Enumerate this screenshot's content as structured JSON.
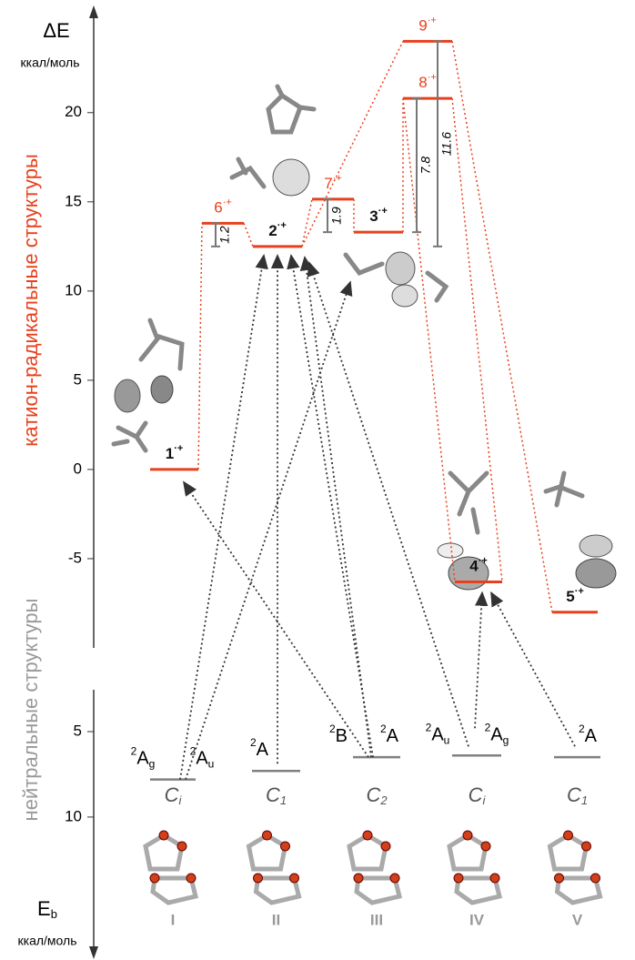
{
  "upper_axis": {
    "title": "ΔE",
    "unit": "ккал/моль",
    "label": "катион-радикальные структуры",
    "ylim": [
      -10,
      25.7
    ],
    "yticks": [
      -5,
      0,
      5,
      10,
      15,
      20
    ]
  },
  "lower_axis": {
    "title": "E",
    "title_sub": "b",
    "unit": "ккал/моль",
    "label": "нейтральные структуры",
    "ylim": [
      2.55,
      18.1
    ],
    "yticks": [
      5,
      10
    ]
  },
  "cation_levels": [
    {
      "label": "1",
      "charge": "·+",
      "value": 0
    },
    {
      "label": "2",
      "charge": "·+",
      "value": 12.5
    },
    {
      "label": "3",
      "charge": "·+",
      "value": 13.3
    },
    {
      "label": "4",
      "charge": "·+",
      "value": -6.3
    },
    {
      "label": "5",
      "charge": "·+",
      "value": -8.0
    },
    {
      "label": "6",
      "charge": "·+",
      "value": 13.8
    },
    {
      "label": "7",
      "charge": "·+",
      "value": 15.15
    },
    {
      "label": "8",
      "charge": "·+",
      "value": 20.8
    },
    {
      "label": "9",
      "charge": "·+",
      "value": 24.0
    }
  ],
  "gaps": [
    {
      "value": 1.2
    },
    {
      "value": 1.9
    },
    {
      "value": 7.8
    },
    {
      "value": 11.6
    }
  ],
  "neutral_levels": [
    {
      "name": "I",
      "value": 7.8,
      "group": "C",
      "group_sub": "i",
      "terms": [
        {
          "sup": "2",
          "base": "A",
          "sub": "g"
        },
        {
          "sup": "2",
          "base": "A",
          "sub": "u"
        }
      ]
    },
    {
      "name": "II",
      "value": 7.3,
      "group": "C",
      "group_sub": "1",
      "terms": [
        {
          "sup": "2",
          "base": "A"
        }
      ]
    },
    {
      "name": "III",
      "value": 6.5,
      "group": "C",
      "group_sub": "2",
      "terms": [
        {
          "sup": "2",
          "base": "B"
        },
        {
          "sup": "2",
          "base": "A"
        }
      ]
    },
    {
      "name": "IV",
      "value": 6.4,
      "group": "C",
      "group_sub": "i",
      "terms": [
        {
          "sup": "2",
          "base": "A",
          "sub": "u"
        },
        {
          "sup": "2",
          "base": "A",
          "sub": "g"
        }
      ]
    },
    {
      "name": "V",
      "value": 6.5,
      "group": "C",
      "group_sub": "1",
      "terms": [
        {
          "sup": "2",
          "base": "A"
        }
      ]
    }
  ],
  "colors": {
    "cation": "#e8401c",
    "neutral": "#808080"
  }
}
